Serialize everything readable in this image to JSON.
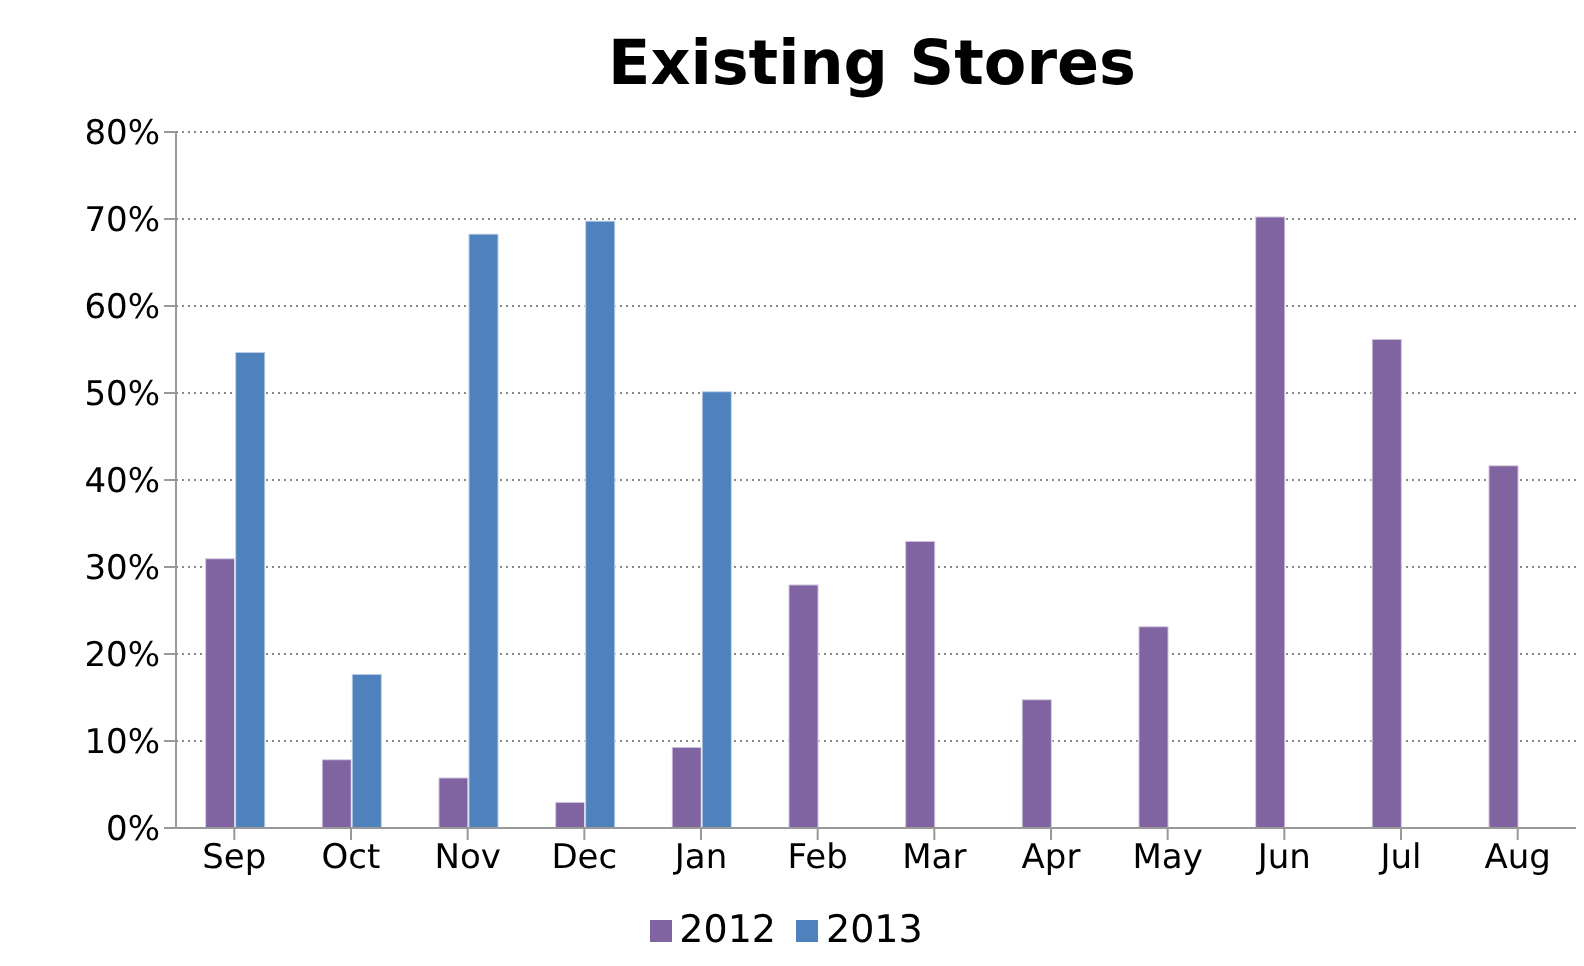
{
  "chart_data": {
    "type": "bar",
    "title": "Existing Stores",
    "categories": [
      "Sep",
      "Oct",
      "Nov",
      "Dec",
      "Jan",
      "Feb",
      "Mar",
      "Apr",
      "May",
      "Jun",
      "Jul",
      "Aug"
    ],
    "series": [
      {
        "name": "2012",
        "color": "#8064a2",
        "values": [
          31.0,
          7.9,
          5.8,
          3.0,
          9.3,
          28.0,
          33.0,
          14.8,
          23.2,
          70.3,
          56.2,
          41.7
        ]
      },
      {
        "name": "2013",
        "color": "#4f81bd",
        "values": [
          54.7,
          17.7,
          68.3,
          69.8,
          50.2,
          null,
          null,
          null,
          null,
          null,
          null,
          null
        ]
      }
    ],
    "ylim": [
      0,
      80
    ],
    "yticks": [
      {
        "value": 0,
        "label": "0%"
      },
      {
        "value": 10,
        "label": "10%"
      },
      {
        "value": 20,
        "label": "20%"
      },
      {
        "value": 30,
        "label": "30%"
      },
      {
        "value": 40,
        "label": "40%"
      },
      {
        "value": 50,
        "label": "50%"
      },
      {
        "value": 60,
        "label": "60%"
      },
      {
        "value": 70,
        "label": "70%"
      },
      {
        "value": 80,
        "label": "80%"
      }
    ],
    "grid": "y",
    "legend": "bottom"
  }
}
